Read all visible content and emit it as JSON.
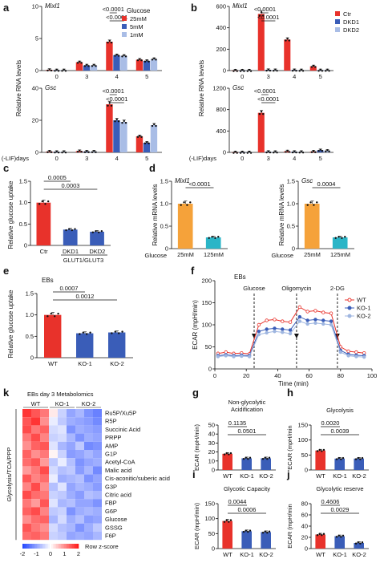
{
  "panel_letters": [
    "a",
    "b",
    "c",
    "d",
    "e",
    "f",
    "g",
    "h",
    "i",
    "j",
    "k"
  ],
  "chart_data": [
    {
      "id": "a-top",
      "type": "bar",
      "gene": "Mixl1",
      "ylabel": "Relative RNA levels",
      "categories": [
        "0",
        "3",
        "4",
        "5"
      ],
      "ylim": [
        0,
        10
      ],
      "yticks": [
        0,
        5,
        10
      ],
      "legend_title": "Glucose",
      "series": [
        {
          "name": "25mM",
          "color": "#e8322b",
          "values": [
            0.1,
            1.3,
            4.5,
            1.7
          ]
        },
        {
          "name": "5mM",
          "color": "#3a5db8",
          "values": [
            0.05,
            0.8,
            2.4,
            1.5
          ]
        },
        {
          "name": "1mM",
          "color": "#a9bde6",
          "values": [
            0.05,
            0.8,
            2.3,
            1.8
          ]
        }
      ],
      "annotations": [
        {
          "text": "<0.0001",
          "from": 0,
          "to": 1,
          "cat": 2
        },
        {
          "text": "<0.0001",
          "from": 0,
          "to": 2,
          "cat": 2
        }
      ]
    },
    {
      "id": "a-bottom",
      "type": "bar",
      "gene": "Gsc",
      "xlabel_prefix": "(-LIF)days",
      "categories": [
        "0",
        "3",
        "4",
        "5"
      ],
      "ylim": [
        0,
        40
      ],
      "yticks": [
        0,
        20,
        40
      ],
      "series": [
        {
          "name": "25mM",
          "color": "#e8322b",
          "values": [
            0.5,
            0.8,
            30,
            10
          ]
        },
        {
          "name": "5mM",
          "color": "#3a5db8",
          "values": [
            0.3,
            0.5,
            20,
            6
          ]
        },
        {
          "name": "1mM",
          "color": "#a9bde6",
          "values": [
            0.3,
            0.5,
            19,
            17
          ]
        }
      ],
      "annotations": [
        {
          "text": "<0.0001",
          "from": 0,
          "to": 1,
          "cat": 2
        },
        {
          "text": "<0.0001",
          "from": 0,
          "to": 2,
          "cat": 2
        }
      ]
    },
    {
      "id": "b-top",
      "type": "bar",
      "gene": "Mixl1",
      "ylabel": "Relative RNA levels",
      "categories": [
        "0",
        "3",
        "4",
        "5"
      ],
      "ylim": [
        0,
        600
      ],
      "yticks": [
        0,
        200,
        400,
        600
      ],
      "series": [
        {
          "name": "Ctr",
          "color": "#e8322b",
          "values": [
            1,
            530,
            290,
            40
          ]
        },
        {
          "name": "DKD1",
          "color": "#3a5db8",
          "values": [
            1,
            5,
            4,
            3
          ]
        },
        {
          "name": "DKD2",
          "color": "#a9bde6",
          "values": [
            1,
            4,
            3,
            3
          ]
        }
      ],
      "annotations": [
        {
          "text": "<0.0001",
          "from": 0,
          "to": 1,
          "cat": 1
        },
        {
          "text": "<0.0001",
          "from": 0,
          "to": 2,
          "cat": 1
        }
      ]
    },
    {
      "id": "b-bottom",
      "type": "bar",
      "gene": "Gsc",
      "xlabel_prefix": "(-LIF)days",
      "categories": [
        "0",
        "3",
        "4",
        "5"
      ],
      "ylim": [
        0,
        1200
      ],
      "yticks": [
        0,
        400,
        800,
        1200
      ],
      "series": [
        {
          "name": "Ctr",
          "color": "#e8322b",
          "values": [
            2,
            740,
            20,
            15
          ]
        },
        {
          "name": "DKD1",
          "color": "#3a5db8",
          "values": [
            2,
            10,
            10,
            40
          ]
        },
        {
          "name": "DKD2",
          "color": "#a9bde6",
          "values": [
            2,
            8,
            8,
            30
          ]
        }
      ],
      "annotations": [
        {
          "text": "<0.0001",
          "from": 0,
          "to": 1,
          "cat": 1
        },
        {
          "text": "<0.0001",
          "from": 0,
          "to": 2,
          "cat": 1
        }
      ]
    },
    {
      "id": "c",
      "type": "bar",
      "ylabel": "Relative glucose uptake",
      "categories": [
        "Ctr",
        "DKD1",
        "DKD2"
      ],
      "group_label": "GLUT1/GLUT3",
      "ylim": [
        0,
        1.5
      ],
      "yticks": [
        0,
        0.5,
        1.0,
        1.5
      ],
      "ytick_labels": [
        "0",
        "0.5",
        "1.0",
        "1.5"
      ],
      "values": [
        1.0,
        0.37,
        0.32
      ],
      "colors": [
        "#e8322b",
        "#3a5db8",
        "#3a5db8"
      ],
      "annotations": [
        {
          "text": "0.0005",
          "from": 0,
          "to": 1
        },
        {
          "text": "0.0003",
          "from": 0,
          "to": 2
        }
      ]
    },
    {
      "id": "d-left",
      "type": "bar",
      "gene": "Mixl1",
      "ylabel": "Relative mRNA levels",
      "xprefix": "Glucose",
      "categories": [
        "25mM",
        "125mM"
      ],
      "ylim": [
        0,
        1.5
      ],
      "yticks": [
        0,
        0.5,
        1.0,
        1.5
      ],
      "ytick_labels": [
        "0",
        "0.5",
        "1.0",
        "1.5"
      ],
      "values": [
        1.0,
        0.25
      ],
      "colors": [
        "#f5a23a",
        "#2bb5c7"
      ],
      "annotations": [
        {
          "text": "<0.0001",
          "from": 0,
          "to": 1
        }
      ]
    },
    {
      "id": "d-right",
      "type": "bar",
      "gene": "Gsc",
      "ylabel": "Relative mRNA levels",
      "xprefix": "Glucose",
      "categories": [
        "25mM",
        "125mM"
      ],
      "ylim": [
        0,
        1.5
      ],
      "yticks": [
        0,
        0.5,
        1.0,
        1.5
      ],
      "ytick_labels": [
        "0",
        "0.5",
        "1.0",
        "1.5"
      ],
      "values": [
        1.0,
        0.25
      ],
      "colors": [
        "#f5a23a",
        "#2bb5c7"
      ],
      "annotations": [
        {
          "text": "0.0004",
          "from": 0,
          "to": 1
        }
      ]
    },
    {
      "id": "e",
      "type": "bar",
      "title": "EBs",
      "ylabel": "Relative glucose uptake",
      "categories": [
        "WT",
        "KO-1",
        "KO-2"
      ],
      "ylim": [
        0,
        1.5
      ],
      "yticks": [
        0,
        0.5,
        1.0,
        1.5
      ],
      "ytick_labels": [
        "0",
        "0.5",
        "1.0",
        "1.5"
      ],
      "values": [
        1.0,
        0.57,
        0.59
      ],
      "colors": [
        "#e8322b",
        "#3a5db8",
        "#3a5db8"
      ],
      "annotations": [
        {
          "text": "0.0007",
          "from": 0,
          "to": 1
        },
        {
          "text": "0.0012",
          "from": 0,
          "to": 2
        }
      ]
    },
    {
      "id": "f",
      "type": "line",
      "title": "EBs",
      "xlabel": "Time (min)",
      "ylabel": "ECAR (mpH/min)",
      "xlim": [
        0,
        100
      ],
      "xticks": [
        0,
        20,
        40,
        60,
        80,
        100
      ],
      "ylim": [
        0,
        200
      ],
      "yticks": [
        0,
        50,
        100,
        150,
        200
      ],
      "events": [
        {
          "label": "Glucose",
          "x": 25
        },
        {
          "label": "Oligomycin",
          "x": 52
        },
        {
          "label": "2-DG",
          "x": 78
        }
      ],
      "x": [
        2,
        7,
        12,
        17,
        22,
        28,
        33,
        38,
        43,
        48,
        54,
        59,
        64,
        69,
        74,
        80,
        85,
        90,
        95
      ],
      "series": [
        {
          "name": "WT",
          "color": "#e8322b",
          "marker": "open",
          "values": [
            35,
            38,
            35,
            36,
            34,
            100,
            110,
            112,
            108,
            106,
            140,
            130,
            132,
            128,
            126,
            50,
            40,
            38,
            36
          ]
        },
        {
          "name": "KO-1",
          "color": "#3a5db8",
          "marker": "filled",
          "values": [
            30,
            32,
            30,
            31,
            30,
            85,
            90,
            92,
            90,
            88,
            118,
            110,
            112,
            110,
            108,
            42,
            33,
            31,
            30
          ]
        },
        {
          "name": "KO-2",
          "color": "#9fb6e0",
          "marker": "filled",
          "values": [
            28,
            30,
            28,
            29,
            28,
            78,
            82,
            85,
            83,
            80,
            108,
            102,
            104,
            102,
            100,
            38,
            30,
            28,
            27
          ]
        }
      ]
    },
    {
      "id": "g",
      "type": "bar",
      "title": "Non-glycolytic Acidification",
      "ylabel": "ECAR (mpH/min)",
      "categories": [
        "WT",
        "KO-1",
        "KO-2"
      ],
      "ylim": [
        0,
        50
      ],
      "yticks": [
        0,
        10,
        20,
        30,
        40,
        50
      ],
      "values": [
        18,
        13,
        13
      ],
      "colors": [
        "#e8322b",
        "#3a5db8",
        "#3a5db8"
      ],
      "annotations": [
        {
          "text": "0.1135",
          "from": 0,
          "to": 1
        },
        {
          "text": "0.0501",
          "from": 0,
          "to": 2
        }
      ]
    },
    {
      "id": "h",
      "type": "bar",
      "title": "Glycolysis",
      "ylabel": "ECAR (mpH/min",
      "categories": [
        "WT",
        "KO-1",
        "KO-2"
      ],
      "ylim": [
        0,
        150
      ],
      "yticks": [
        0,
        50,
        100,
        150
      ],
      "values": [
        65,
        38,
        38
      ],
      "colors": [
        "#e8322b",
        "#3a5db8",
        "#3a5db8"
      ],
      "annotations": [
        {
          "text": "0.0020",
          "from": 0,
          "to": 1
        },
        {
          "text": "0.0039",
          "from": 0,
          "to": 2
        }
      ]
    },
    {
      "id": "i",
      "type": "bar",
      "title": "Glycotic Capacity",
      "ylabel": "ECAR (mpH/min)",
      "categories": [
        "WT",
        "KO-1",
        "KO-2"
      ],
      "ylim": [
        0,
        150
      ],
      "yticks": [
        0,
        50,
        100,
        150
      ],
      "values": [
        92,
        58,
        55
      ],
      "colors": [
        "#e8322b",
        "#3a5db8",
        "#3a5db8"
      ],
      "annotations": [
        {
          "text": "0.0044",
          "from": 0,
          "to": 1
        },
        {
          "text": "0.0006",
          "from": 0,
          "to": 2
        }
      ]
    },
    {
      "id": "j",
      "type": "bar",
      "title": "Glycolytic reserve",
      "ylabel": "ECAR (mpH/min",
      "categories": [
        "WT",
        "KO-1",
        "KO-2"
      ],
      "ylim": [
        0,
        80
      ],
      "yticks": [
        0,
        20,
        40,
        60,
        80
      ],
      "values": [
        25,
        22,
        10
      ],
      "colors": [
        "#e8322b",
        "#3a5db8",
        "#3a5db8"
      ],
      "annotations": [
        {
          "text": "0.4606",
          "from": 0,
          "to": 1
        },
        {
          "text": "0.0029",
          "from": 0,
          "to": 2
        }
      ]
    },
    {
      "id": "k",
      "type": "heatmap",
      "title": "EBs day 3   Metabolomics",
      "side_label": "Glycolysis/TCA/PPP",
      "groups": [
        "WT",
        "KO-1",
        "KO-2"
      ],
      "rows": [
        "Ru5P/Xu5P",
        "R5P",
        "Succinic Acid",
        "PRPP",
        "AMP",
        "G1P",
        "Acetyl-CoA",
        "Malic acid",
        "Cis-aconitic/suberic acid",
        "G3P",
        "Citric acid",
        "FBP",
        "G6P",
        "Glucose",
        "GSSG",
        "F6P"
      ],
      "colorbar_ticks": [
        -2,
        -1,
        0,
        1,
        2
      ],
      "colorbar_label": "Row z-score",
      "values": [
        [
          1.8,
          1.5,
          1.2,
          0.2,
          -0.5,
          -1.0,
          -0.8,
          -1.2,
          -1.4
        ],
        [
          1.5,
          1.8,
          1.0,
          -0.2,
          -0.6,
          -0.9,
          -1.0,
          -1.1,
          -1.3
        ],
        [
          1.6,
          1.2,
          1.4,
          -0.4,
          -0.3,
          -1.2,
          -0.9,
          -1.0,
          -1.1
        ],
        [
          1.2,
          1.6,
          1.1,
          -0.5,
          -0.4,
          -0.8,
          -1.2,
          -0.9,
          -1.0
        ],
        [
          1.0,
          1.4,
          1.5,
          -0.3,
          -0.8,
          -1.0,
          -0.6,
          -1.3,
          -1.2
        ],
        [
          1.4,
          1.0,
          1.2,
          0.1,
          -0.5,
          -1.1,
          -1.0,
          -0.8,
          -1.0
        ],
        [
          1.3,
          1.5,
          0.9,
          -0.6,
          -0.2,
          -0.7,
          -1.2,
          -1.0,
          -0.9
        ],
        [
          0.9,
          1.2,
          1.6,
          -0.4,
          -0.7,
          -0.6,
          -1.1,
          -0.8,
          -1.3
        ],
        [
          1.5,
          1.1,
          1.3,
          -0.2,
          -0.9,
          -0.8,
          -0.7,
          -1.2,
          -1.0
        ],
        [
          1.1,
          1.6,
          1.0,
          -0.7,
          -0.3,
          -1.0,
          -0.8,
          -0.9,
          -1.1
        ],
        [
          1.6,
          1.3,
          1.2,
          -0.5,
          -0.6,
          -0.9,
          -1.1,
          -0.7,
          -0.8
        ],
        [
          1.2,
          0.9,
          1.5,
          -0.3,
          -0.8,
          -0.7,
          -1.0,
          -1.0,
          -1.2
        ],
        [
          1.4,
          1.6,
          1.1,
          -0.6,
          -0.5,
          -1.2,
          -0.9,
          -0.8,
          -0.9
        ],
        [
          1.0,
          1.3,
          1.4,
          -0.8,
          -0.4,
          -0.9,
          -0.7,
          -1.1,
          -1.0
        ],
        [
          1.5,
          1.2,
          1.0,
          -0.4,
          -0.7,
          -0.8,
          -1.2,
          -0.9,
          -0.6
        ],
        [
          1.3,
          1.4,
          1.2,
          -0.5,
          -0.6,
          -1.0,
          -0.9,
          -1.0,
          -0.8
        ]
      ]
    }
  ]
}
